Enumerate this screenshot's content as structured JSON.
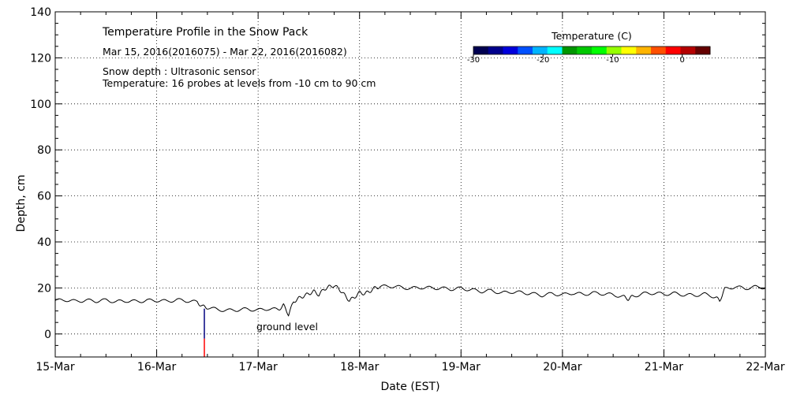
{
  "chart_data": {
    "type": "line",
    "title": "Temperature Profile in the Snow Pack",
    "subtitle": "Mar 15, 2016(2016075) - Mar 22, 2016(2016082)",
    "notes": [
      "Snow depth : Ultrasonic sensor",
      "Temperature: 16 probes at levels from -10 cm to 90 cm"
    ],
    "xlabel": "Date (EST)",
    "ylabel": "Depth, cm",
    "x_ticks": [
      "15-Mar",
      "16-Mar",
      "17-Mar",
      "18-Mar",
      "19-Mar",
      "20-Mar",
      "21-Mar",
      "22-Mar"
    ],
    "xlim_days": [
      0,
      7
    ],
    "ylim": [
      -10,
      140
    ],
    "y_ticks": [
      0,
      20,
      40,
      60,
      80,
      100,
      120,
      140
    ],
    "grid": true,
    "annotation": "ground level",
    "colorbar": {
      "title": "Temperature (C)",
      "tick_labels": [
        "-30",
        "-20",
        "-10",
        "0"
      ],
      "tick_values": [
        -30,
        -20,
        -10,
        0
      ],
      "range": [
        -30,
        4
      ],
      "colors": [
        "#000050",
        "#00008c",
        "#0000dc",
        "#0050ff",
        "#00b4ff",
        "#00ffff",
        "#009600",
        "#00c800",
        "#00ff00",
        "#96ff00",
        "#ffff00",
        "#ffb400",
        "#ff5000",
        "#ff0000",
        "#b40000",
        "#640000"
      ]
    },
    "probe_markers": [
      {
        "x_day": 1.47,
        "y_from": -10,
        "y_to": -2,
        "color": "#ff0000"
      },
      {
        "x_day": 1.47,
        "y_from": -2,
        "y_to": 11,
        "color": "#000080"
      }
    ],
    "series": [
      {
        "name": "Snow depth",
        "x_days": [
          0,
          0.1,
          0.2,
          0.3,
          0.4,
          0.5,
          0.6,
          0.7,
          0.8,
          0.9,
          1.0,
          1.1,
          1.2,
          1.3,
          1.4,
          1.45,
          1.5,
          1.6,
          1.7,
          1.8,
          1.9,
          2.0,
          2.1,
          2.2,
          2.25,
          2.3,
          2.35,
          2.4,
          2.45,
          2.5,
          2.55,
          2.6,
          2.65,
          2.7,
          2.75,
          2.8,
          2.85,
          2.9,
          2.95,
          3.0,
          3.05,
          3.1,
          3.15,
          3.2,
          3.3,
          3.4,
          3.5,
          3.6,
          3.7,
          3.8,
          3.9,
          4.0,
          4.1,
          4.2,
          4.3,
          4.4,
          4.5,
          4.6,
          4.7,
          4.8,
          4.9,
          5.0,
          5.1,
          5.2,
          5.3,
          5.4,
          5.5,
          5.6,
          5.65,
          5.7,
          5.8,
          5.9,
          6.0,
          6.1,
          6.2,
          6.3,
          6.4,
          6.5,
          6.55,
          6.6,
          6.7,
          6.8,
          6.9,
          7.0
        ],
        "values": [
          14.5,
          14.8,
          14.2,
          14.6,
          14.3,
          14.7,
          14.0,
          14.4,
          14.1,
          14.5,
          14.6,
          14.2,
          14.8,
          14.4,
          13.8,
          12.0,
          11.5,
          10.6,
          10.2,
          10.5,
          10.8,
          10.3,
          11.0,
          10.5,
          12.5,
          8.5,
          14.0,
          15.5,
          16.5,
          17.5,
          18.5,
          17.0,
          19.5,
          20.5,
          21.0,
          19.5,
          17.0,
          14.5,
          16.0,
          18.0,
          17.5,
          18.5,
          20.0,
          20.5,
          20.8,
          20.3,
          19.8,
          20.2,
          20.0,
          19.9,
          19.5,
          19.8,
          19.2,
          18.5,
          18.8,
          17.8,
          18.3,
          18.0,
          17.5,
          16.8,
          17.5,
          17.0,
          17.8,
          17.2,
          17.8,
          17.5,
          17.0,
          16.2,
          15.2,
          16.5,
          17.5,
          17.8,
          17.3,
          17.6,
          17.0,
          16.8,
          17.3,
          16.2,
          14.5,
          19.5,
          20.5,
          19.8,
          20.4,
          20.2
        ]
      }
    ]
  }
}
